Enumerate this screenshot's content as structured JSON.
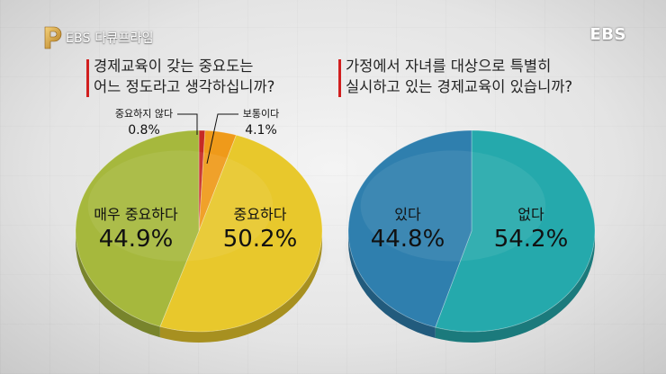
{
  "header": {
    "program_logo_text": "EBS 다큐프라임",
    "broadcaster_logo_text": "EBS"
  },
  "left_chart": {
    "question": [
      "경제교육이 갖는 중요도는",
      "어느 정도라고 생각하십니까?"
    ]
  },
  "right_chart": {
    "question": [
      "가정에서 자녀를 대상으로 특별히",
      "실시하고 있는 경제교육이 있습니까?"
    ]
  },
  "colors": {
    "accent_bar": "#d11f1f",
    "important_very": "#a6b83d",
    "important": "#e8c82c",
    "normal": "#ef9a1a",
    "not_important": "#c62a24",
    "yes": "#2f7fae",
    "no": "#25a9ac"
  },
  "chart_data": [
    {
      "type": "pie",
      "title": "경제교육이 갖는 중요도는 어느 정도라고 생각하십니까?",
      "slices": [
        {
          "label": "중요하지 않다",
          "value": 0.8,
          "display": "0.8%",
          "color": "#c62a24"
        },
        {
          "label": "보통이다",
          "value": 4.1,
          "display": "4.1%",
          "color": "#ef9a1a"
        },
        {
          "label": "중요하다",
          "value": 50.2,
          "display": "50.2%",
          "color": "#e8c82c"
        },
        {
          "label": "매우 중요하다",
          "value": 44.9,
          "display": "44.9%",
          "color": "#a6b83d"
        }
      ]
    },
    {
      "type": "pie",
      "title": "가정에서 자녀를 대상으로 특별히 실시하고 있는 경제교육이 있습니까?",
      "slices": [
        {
          "label": "없다",
          "value": 54.2,
          "display": "54.2%",
          "color": "#25a9ac"
        },
        {
          "label": "있다",
          "value": 44.8,
          "display": "44.8%",
          "color": "#2f7fae"
        }
      ]
    }
  ]
}
